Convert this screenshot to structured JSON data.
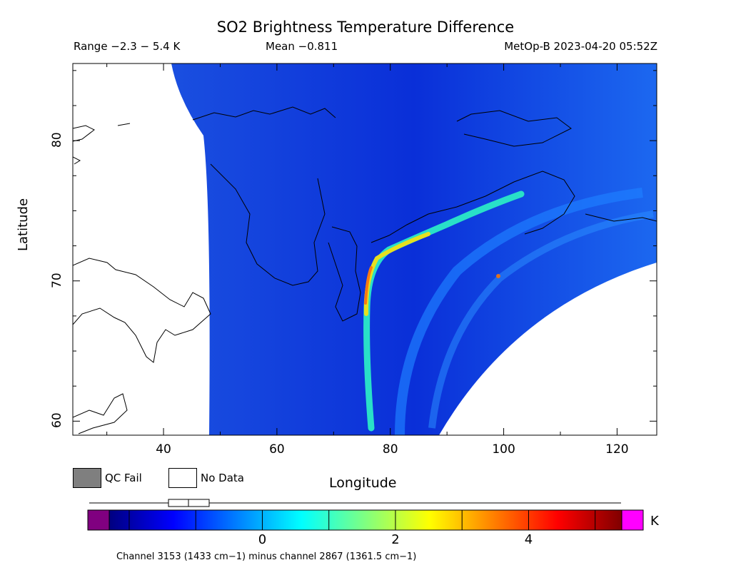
{
  "header": {
    "title": "SO2 Brightness Temperature Difference",
    "range": "Range −2.3 − 5.4 K",
    "mean": "Mean −0.811",
    "satellite": "MetOp-B 2023-04-20 05:52Z"
  },
  "map": {
    "lon_range": [
      24,
      127
    ],
    "lat_range": [
      59,
      85.5
    ],
    "x_ticks": [
      40,
      60,
      80,
      100,
      120
    ],
    "y_ticks": [
      60,
      70,
      80
    ],
    "x_tick_labels": [
      "40",
      "60",
      "80",
      "100",
      "120"
    ],
    "y_tick_labels": [
      "60",
      "70",
      "80"
    ],
    "xlabel": "Longitude",
    "ylabel": "Latitude"
  },
  "legend": {
    "qc_fail": "QC Fail",
    "no_data": "No Data",
    "qc_color": "#7f7f7f"
  },
  "colorbar": {
    "unit": "K",
    "ticks": [
      "0",
      "2",
      "4"
    ],
    "range": [
      -2.3,
      5.4
    ],
    "under_color": "#800080",
    "over_color": "#ff00ff",
    "colors": [
      "#000080",
      "#0000ff",
      "#0080ff",
      "#00ffff",
      "#80ff80",
      "#ffff00",
      "#ff8000",
      "#ff0000",
      "#800000"
    ]
  },
  "footnote": "Channel 3153 (1433 cm−1) minus channel 2867 (1361.5 cm−1)"
}
